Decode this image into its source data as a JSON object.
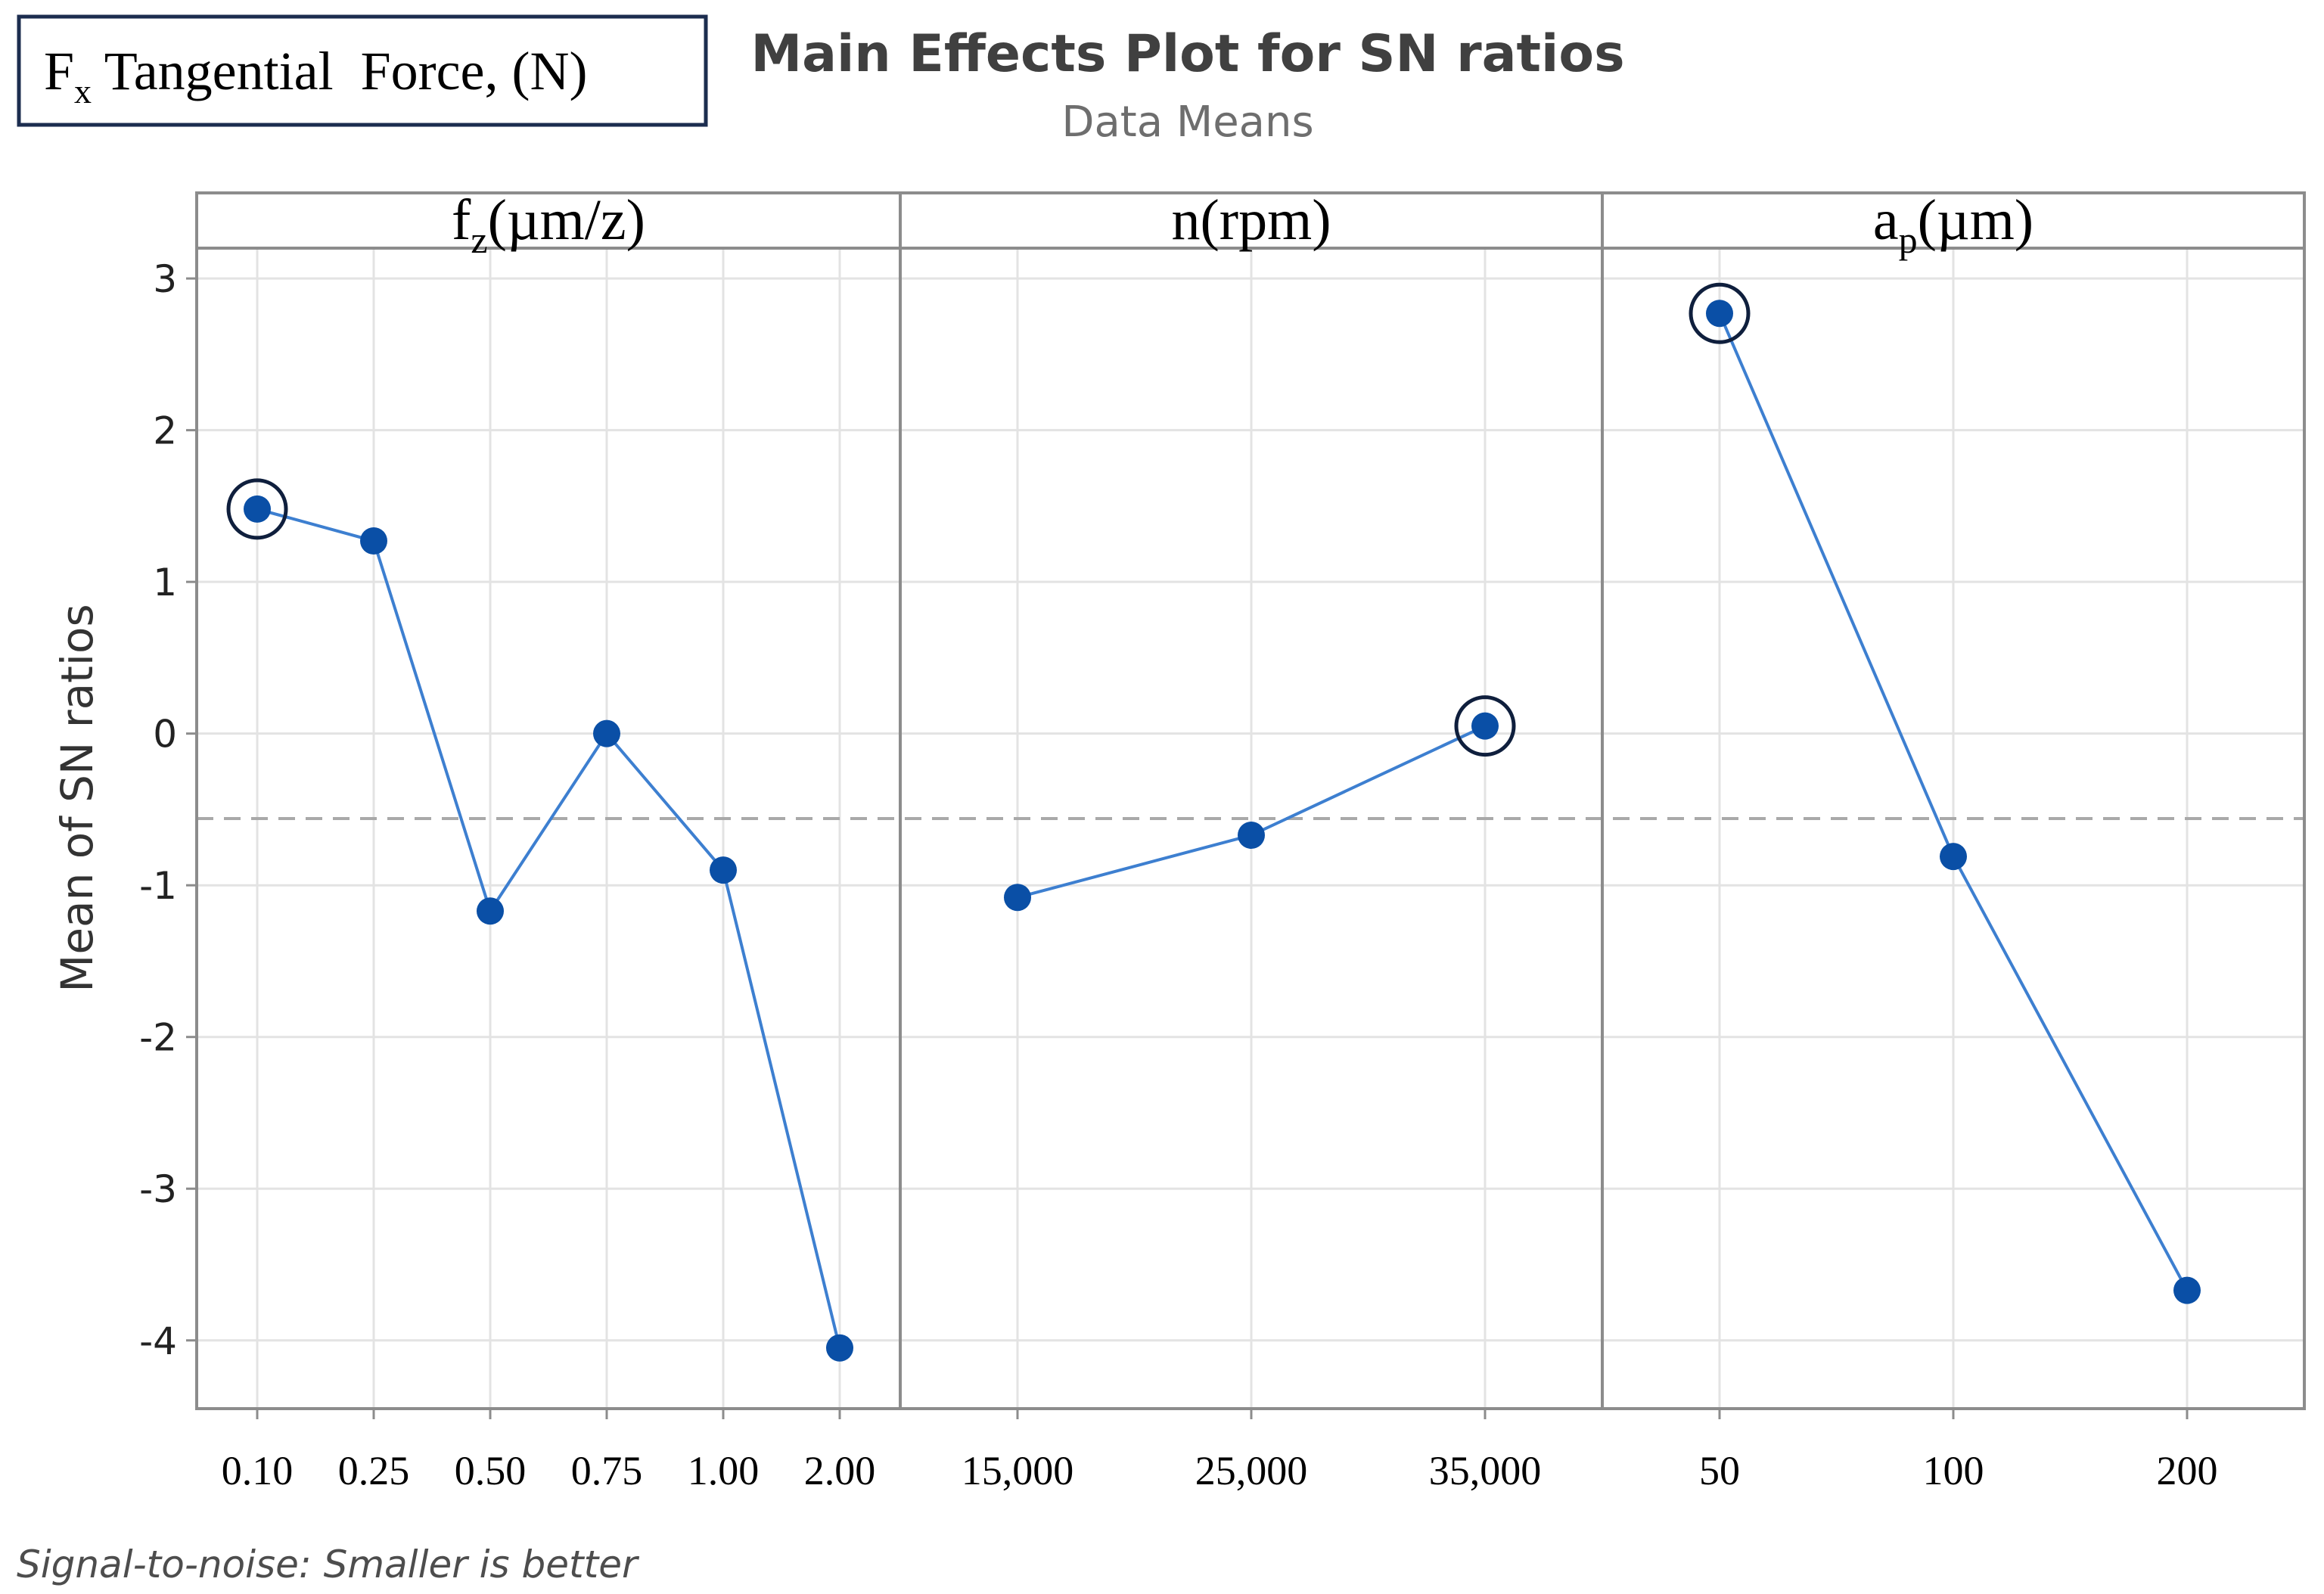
{
  "label_box": {
    "main": "F",
    "sub": "x",
    "rest": " Tangential  Force, (N)"
  },
  "chart_data": {
    "type": "line",
    "title": "Main Effects Plot for SN ratios",
    "subtitle": "Data Means",
    "ylabel": "Mean of SN ratios",
    "ylim": [
      -4.45,
      3.2
    ],
    "yticks": [
      "3",
      "2",
      "1",
      "0",
      "-1",
      "-2",
      "-3",
      "-4"
    ],
    "ytick_values": [
      3,
      2,
      1,
      0,
      -1,
      -2,
      -3,
      -4
    ],
    "overall_mean": -0.56,
    "footnote": "Signal-to-noise: Smaller is better",
    "colors": {
      "line": "#3d7fd0",
      "marker": "#0a4fa6",
      "highlight": "#0f1f3d",
      "grid": "#e3e3e3",
      "mean_line": "#a9a9a9",
      "frame": "#8c8c8c"
    },
    "panels": [
      {
        "label_main": "f",
        "label_sub": "z",
        "label_rest": "(µm/z)",
        "categories": [
          "0.10",
          "0.25",
          "0.50",
          "0.75",
          "1.00",
          "2.00"
        ],
        "values": [
          1.48,
          1.27,
          -1.17,
          0.0,
          -0.9,
          -4.05
        ],
        "highlight_index": 0
      },
      {
        "label_main": "n(rpm)",
        "label_sub": "",
        "label_rest": "",
        "categories": [
          "15,000",
          "25,000",
          "35,000"
        ],
        "values": [
          -1.08,
          -0.67,
          0.05
        ],
        "highlight_index": 2
      },
      {
        "label_main": "a",
        "label_sub": "p",
        "label_rest": "(µm)",
        "categories": [
          "50",
          "100",
          "200"
        ],
        "values": [
          2.77,
          -0.81,
          -3.67
        ],
        "highlight_index": 0
      }
    ]
  }
}
